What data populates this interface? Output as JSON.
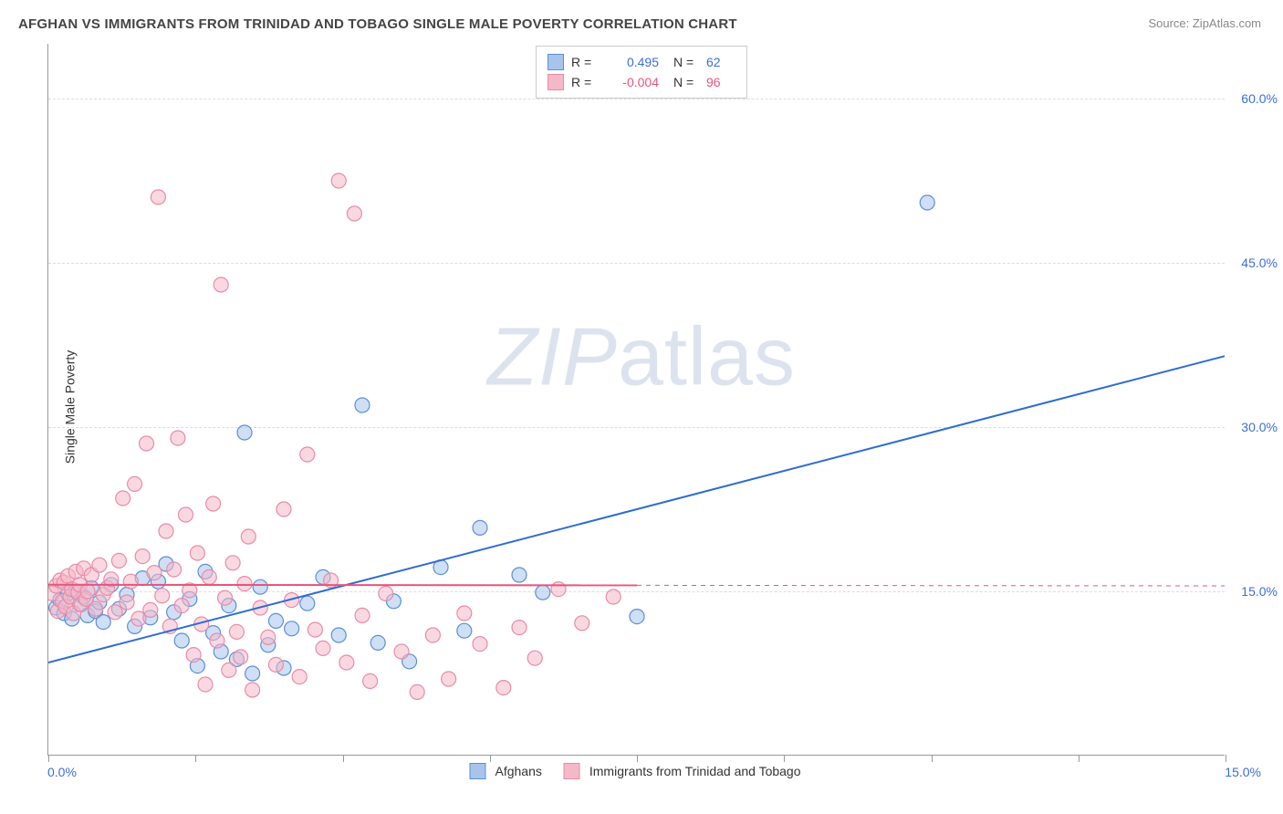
{
  "title": "AFGHAN VS IMMIGRANTS FROM TRINIDAD AND TOBAGO SINGLE MALE POVERTY CORRELATION CHART",
  "source": "Source: ZipAtlas.com",
  "y_axis_label": "Single Male Poverty",
  "watermark": {
    "part1": "ZIP",
    "part2": "atlas"
  },
  "chart": {
    "type": "scatter",
    "background_color": "#ffffff",
    "grid_color": "#dddddd",
    "axis_color": "#999999",
    "xlim": [
      0,
      15
    ],
    "ylim": [
      0,
      65
    ],
    "x_ticks": [
      0,
      1.875,
      3.75,
      5.625,
      7.5,
      9.375,
      11.25,
      13.125,
      15
    ],
    "x_tick_labels": {
      "left": "0.0%",
      "right": "15.0%"
    },
    "y_gridlines": [
      {
        "value": 15.0,
        "label": "15.0%"
      },
      {
        "value": 30.0,
        "label": "30.0%"
      },
      {
        "value": 45.0,
        "label": "45.0%"
      },
      {
        "value": 60.0,
        "label": "60.0%"
      }
    ],
    "label_color": "#3b6fd6",
    "label_fontsize": 14,
    "title_fontsize": 15,
    "title_color": "#444444",
    "marker_radius": 8,
    "marker_opacity": 0.55,
    "marker_stroke_width": 1.2,
    "trend_line_width": 2,
    "dashed_line_width": 1
  },
  "series": [
    {
      "name": "Afghans",
      "fill_color": "#a8c4ec",
      "stroke_color": "#5a8fd8",
      "line_color": "#2d6cd4",
      "r_value": "0.495",
      "n_value": "62",
      "r_color": "#3b6fd6",
      "trend": {
        "x1": 0,
        "y1": 8.5,
        "x2": 15,
        "y2": 36.5
      },
      "dashed_continuation": null,
      "points": [
        [
          0.1,
          13.5
        ],
        [
          0.15,
          14.2
        ],
        [
          0.2,
          13.0
        ],
        [
          0.25,
          14.8
        ],
        [
          0.3,
          12.5
        ],
        [
          0.35,
          15.0
        ],
        [
          0.4,
          13.8
        ],
        [
          0.45,
          14.5
        ],
        [
          0.5,
          12.8
        ],
        [
          0.55,
          15.3
        ],
        [
          0.6,
          13.2
        ],
        [
          0.65,
          14.0
        ],
        [
          0.7,
          12.2
        ],
        [
          0.8,
          15.6
        ],
        [
          0.9,
          13.4
        ],
        [
          1.0,
          14.7
        ],
        [
          1.1,
          11.8
        ],
        [
          1.2,
          16.2
        ],
        [
          1.3,
          12.6
        ],
        [
          1.4,
          15.9
        ],
        [
          1.5,
          17.5
        ],
        [
          1.6,
          13.1
        ],
        [
          1.7,
          10.5
        ],
        [
          1.8,
          14.3
        ],
        [
          1.9,
          8.2
        ],
        [
          2.0,
          16.8
        ],
        [
          2.1,
          11.2
        ],
        [
          2.2,
          9.5
        ],
        [
          2.3,
          13.7
        ],
        [
          2.4,
          8.8
        ],
        [
          2.5,
          29.5
        ],
        [
          2.6,
          7.5
        ],
        [
          2.7,
          15.4
        ],
        [
          2.8,
          10.1
        ],
        [
          2.9,
          12.3
        ],
        [
          3.0,
          8.0
        ],
        [
          3.1,
          11.6
        ],
        [
          3.3,
          13.9
        ],
        [
          3.5,
          16.3
        ],
        [
          3.7,
          11.0
        ],
        [
          4.0,
          32.0
        ],
        [
          4.2,
          10.3
        ],
        [
          4.4,
          14.1
        ],
        [
          4.6,
          8.6
        ],
        [
          5.0,
          17.2
        ],
        [
          5.3,
          11.4
        ],
        [
          5.5,
          20.8
        ],
        [
          6.0,
          16.5
        ],
        [
          6.3,
          14.9
        ],
        [
          7.5,
          12.7
        ],
        [
          11.2,
          50.5
        ]
      ]
    },
    {
      "name": "Immigrants from Trinidad and Tobago",
      "fill_color": "#f5b8c8",
      "stroke_color": "#e88ba6",
      "line_color": "#e8547a",
      "r_value": "-0.004",
      "n_value": "96",
      "r_color": "#e8547a",
      "trend": {
        "x1": 0,
        "y1": 15.6,
        "x2": 7.5,
        "y2": 15.55
      },
      "dashed_continuation": {
        "x1": 7.5,
        "y1": 15.55,
        "x2": 15,
        "y2": 15.5
      },
      "points": [
        [
          0.05,
          14.8
        ],
        [
          0.1,
          15.5
        ],
        [
          0.12,
          13.2
        ],
        [
          0.15,
          16.0
        ],
        [
          0.18,
          14.1
        ],
        [
          0.2,
          15.8
        ],
        [
          0.22,
          13.6
        ],
        [
          0.25,
          16.4
        ],
        [
          0.28,
          14.5
        ],
        [
          0.3,
          15.2
        ],
        [
          0.32,
          13.0
        ],
        [
          0.35,
          16.8
        ],
        [
          0.38,
          14.9
        ],
        [
          0.4,
          15.6
        ],
        [
          0.42,
          13.8
        ],
        [
          0.45,
          17.1
        ],
        [
          0.48,
          14.3
        ],
        [
          0.5,
          15.0
        ],
        [
          0.55,
          16.5
        ],
        [
          0.6,
          13.4
        ],
        [
          0.65,
          17.4
        ],
        [
          0.7,
          14.7
        ],
        [
          0.75,
          15.3
        ],
        [
          0.8,
          16.1
        ],
        [
          0.85,
          13.1
        ],
        [
          0.9,
          17.8
        ],
        [
          0.95,
          23.5
        ],
        [
          1.0,
          14.0
        ],
        [
          1.05,
          15.9
        ],
        [
          1.1,
          24.8
        ],
        [
          1.15,
          12.5
        ],
        [
          1.2,
          18.2
        ],
        [
          1.25,
          28.5
        ],
        [
          1.3,
          13.3
        ],
        [
          1.35,
          16.7
        ],
        [
          1.4,
          51.0
        ],
        [
          1.45,
          14.6
        ],
        [
          1.5,
          20.5
        ],
        [
          1.55,
          11.8
        ],
        [
          1.6,
          17.0
        ],
        [
          1.65,
          29.0
        ],
        [
          1.7,
          13.7
        ],
        [
          1.75,
          22.0
        ],
        [
          1.8,
          15.1
        ],
        [
          1.85,
          9.2
        ],
        [
          1.9,
          18.5
        ],
        [
          1.95,
          12.0
        ],
        [
          2.0,
          6.5
        ],
        [
          2.05,
          16.3
        ],
        [
          2.1,
          23.0
        ],
        [
          2.15,
          10.5
        ],
        [
          2.2,
          43.0
        ],
        [
          2.25,
          14.4
        ],
        [
          2.3,
          7.8
        ],
        [
          2.35,
          17.6
        ],
        [
          2.4,
          11.3
        ],
        [
          2.45,
          9.0
        ],
        [
          2.5,
          15.7
        ],
        [
          2.55,
          20.0
        ],
        [
          2.6,
          6.0
        ],
        [
          2.7,
          13.5
        ],
        [
          2.8,
          10.8
        ],
        [
          2.9,
          8.3
        ],
        [
          3.0,
          22.5
        ],
        [
          3.1,
          14.2
        ],
        [
          3.2,
          7.2
        ],
        [
          3.3,
          27.5
        ],
        [
          3.4,
          11.5
        ],
        [
          3.5,
          9.8
        ],
        [
          3.6,
          16.0
        ],
        [
          3.7,
          52.5
        ],
        [
          3.8,
          8.5
        ],
        [
          3.9,
          49.5
        ],
        [
          4.0,
          12.8
        ],
        [
          4.1,
          6.8
        ],
        [
          4.3,
          14.8
        ],
        [
          4.5,
          9.5
        ],
        [
          4.7,
          5.8
        ],
        [
          4.9,
          11.0
        ],
        [
          5.1,
          7.0
        ],
        [
          5.3,
          13.0
        ],
        [
          5.5,
          10.2
        ],
        [
          5.8,
          6.2
        ],
        [
          6.0,
          11.7
        ],
        [
          6.2,
          8.9
        ],
        [
          6.5,
          15.2
        ],
        [
          6.8,
          12.1
        ],
        [
          7.2,
          14.5
        ]
      ]
    }
  ],
  "legend_top": {
    "r_label": "R =",
    "n_label": "N ="
  },
  "legend_bottom": {
    "series": [
      "Afghans",
      "Immigrants from Trinidad and Tobago"
    ]
  }
}
